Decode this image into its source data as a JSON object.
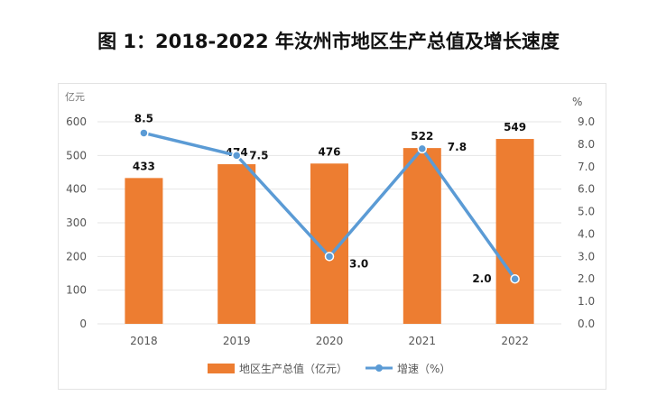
{
  "chart_data": {
    "type": "bar",
    "title": "图 1：2018-2022 年汝州市地区生产总值及增长速度",
    "categories": [
      "2018",
      "2019",
      "2020",
      "2021",
      "2022"
    ],
    "series": [
      {
        "name": "地区生产总值（亿元）",
        "type": "bar",
        "axis": "left",
        "values": [
          433,
          474,
          476,
          522,
          549
        ],
        "color": "#ED7D31"
      },
      {
        "name": "增速（%）",
        "type": "line",
        "axis": "right",
        "values": [
          8.5,
          7.5,
          3.0,
          7.8,
          2.0
        ],
        "color": "#5B9BD5"
      }
    ],
    "ylabel_left": "亿元",
    "ylabel_right": "%",
    "ylim_left": [
      0,
      600
    ],
    "ylim_right": [
      0,
      9
    ],
    "yticks_left": [
      "0",
      "100",
      "200",
      "300",
      "400",
      "500",
      "600"
    ],
    "yticks_right": [
      "0.0",
      "1.0",
      "2.0",
      "3.0",
      "4.0",
      "5.0",
      "6.0",
      "7.0",
      "8.0",
      "9.0"
    ],
    "bar_labels": [
      "433",
      "474",
      "476",
      "522",
      "549"
    ],
    "line_labels": [
      "8.5",
      "7.5",
      "3.0",
      "7.8",
      "2.0"
    ],
    "grid": true,
    "legend_placement": "bottom"
  }
}
